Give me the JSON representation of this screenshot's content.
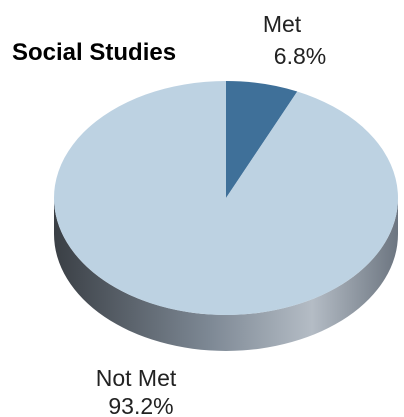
{
  "chart_data": {
    "type": "pie",
    "title": "Social Studies",
    "slices": [
      {
        "label": "Met",
        "value": 6.8,
        "display": "6.8%",
        "color": "#3f7099"
      },
      {
        "label": "Not Met",
        "value": 93.2,
        "display": "93.2%",
        "color": "#bdd2e2"
      }
    ],
    "start_angle_deg": 90,
    "direction": "clockwise",
    "style": "3d",
    "side_color_dark": "#3a3f45",
    "side_color_light": "#b4bcc5",
    "legend": "none"
  }
}
